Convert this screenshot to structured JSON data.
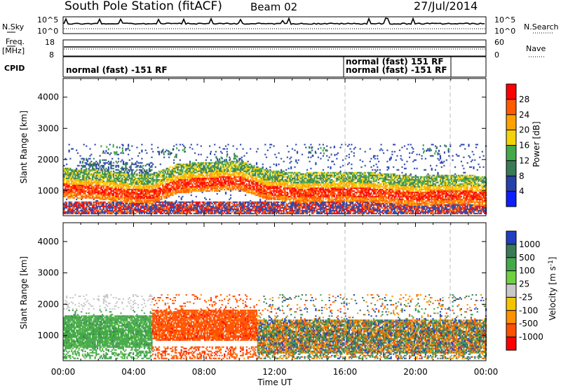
{
  "header": {
    "title": "South Pole Station (fitACF)",
    "beam": "Beam 02",
    "date": "27/Jul/2014"
  },
  "nsky_panel": {
    "left_label": "N.Sky",
    "right_label": "N.Search",
    "left_ticks": [
      "10^5",
      "10^0"
    ],
    "right_ticks": [
      "10^5",
      "10^0"
    ]
  },
  "freq_panel": {
    "left_label_1": "Freq.",
    "left_label_2": "[MHz]",
    "right_label": "Nave",
    "left_ticks": [
      "18",
      "8"
    ],
    "right_ticks": [
      "60",
      "0"
    ]
  },
  "cpid_panel": {
    "label": "CPID",
    "entries": [
      {
        "text": "normal (fast) -151 RF",
        "start_hour": 0
      },
      {
        "text": "normal (fast) 151 RF",
        "start_hour": 16
      },
      {
        "text": "normal (fast) -151 RF",
        "start_hour": 16
      }
    ],
    "dividers_hours": [
      16,
      22
    ]
  },
  "chart_data": [
    {
      "type": "heatmap",
      "name": "power",
      "ylabel": "Slant Range [km]",
      "xlabel": "",
      "xlim": [
        0,
        24
      ],
      "ylim": [
        200,
        4600
      ],
      "yticks": [
        1000,
        2000,
        3000,
        4000
      ],
      "colorbar_label": "Power [dB]",
      "colorbar_ticks": [
        "4",
        "8",
        "12",
        "16",
        "20",
        "24",
        "28"
      ],
      "colorbar_colors": [
        "#0b1fff",
        "#2542a8",
        "#3a7a57",
        "#45a94a",
        "#f4d20a",
        "#ffa000",
        "#ff5a00",
        "#ff0000"
      ],
      "band": [
        {
          "hour": 0.0,
          "center_km": 1050
        },
        {
          "hour": 2.0,
          "center_km": 1000
        },
        {
          "hour": 3.5,
          "center_km": 900
        },
        {
          "hour": 5.0,
          "center_km": 860
        },
        {
          "hour": 6.5,
          "center_km": 1200
        },
        {
          "hour": 8.0,
          "center_km": 1250
        },
        {
          "hour": 10.0,
          "center_km": 1300
        },
        {
          "hour": 11.5,
          "center_km": 1000
        },
        {
          "hour": 13.5,
          "center_km": 900
        },
        {
          "hour": 16.0,
          "center_km": 950
        },
        {
          "hour": 18.0,
          "center_km": 900
        },
        {
          "hour": 20.0,
          "center_km": 800
        },
        {
          "hour": 22.0,
          "center_km": 850
        },
        {
          "hour": 24.0,
          "center_km": 800
        }
      ]
    },
    {
      "type": "heatmap",
      "name": "velocity",
      "ylabel": "Slant Range [km]",
      "xlabel": "Time UT",
      "xlim": [
        0,
        24
      ],
      "ylim": [
        200,
        4600
      ],
      "yticks": [
        1000,
        2000,
        3000,
        4000
      ],
      "xticks": [
        "00:00",
        "04:00",
        "08:00",
        "12:00",
        "16:00",
        "20:00",
        "00:00"
      ],
      "colorbar_label": "Velocity [m s^-1]",
      "colorbar_ticks": [
        "1000",
        "500",
        "100",
        "25",
        "-25",
        "-100",
        "-500",
        "-1000"
      ],
      "colorbar_colors": [
        "#2040c0",
        "#3a7a57",
        "#45a94a",
        "#70d040",
        "#c8c8c8",
        "#f5c400",
        "#ff9000",
        "#ff5000",
        "#ff0000"
      ],
      "regions": [
        {
          "hour_start": 0.0,
          "hour_end": 5.0,
          "km_start": 600,
          "km_end": 1600,
          "v": 100
        },
        {
          "hour_start": 5.0,
          "hour_end": 11.0,
          "km_start": 800,
          "km_end": 1800,
          "v": -500
        },
        {
          "hour_start": 11.0,
          "hour_end": 24.0,
          "km_start": 400,
          "km_end": 1500,
          "v": 500
        }
      ]
    }
  ]
}
